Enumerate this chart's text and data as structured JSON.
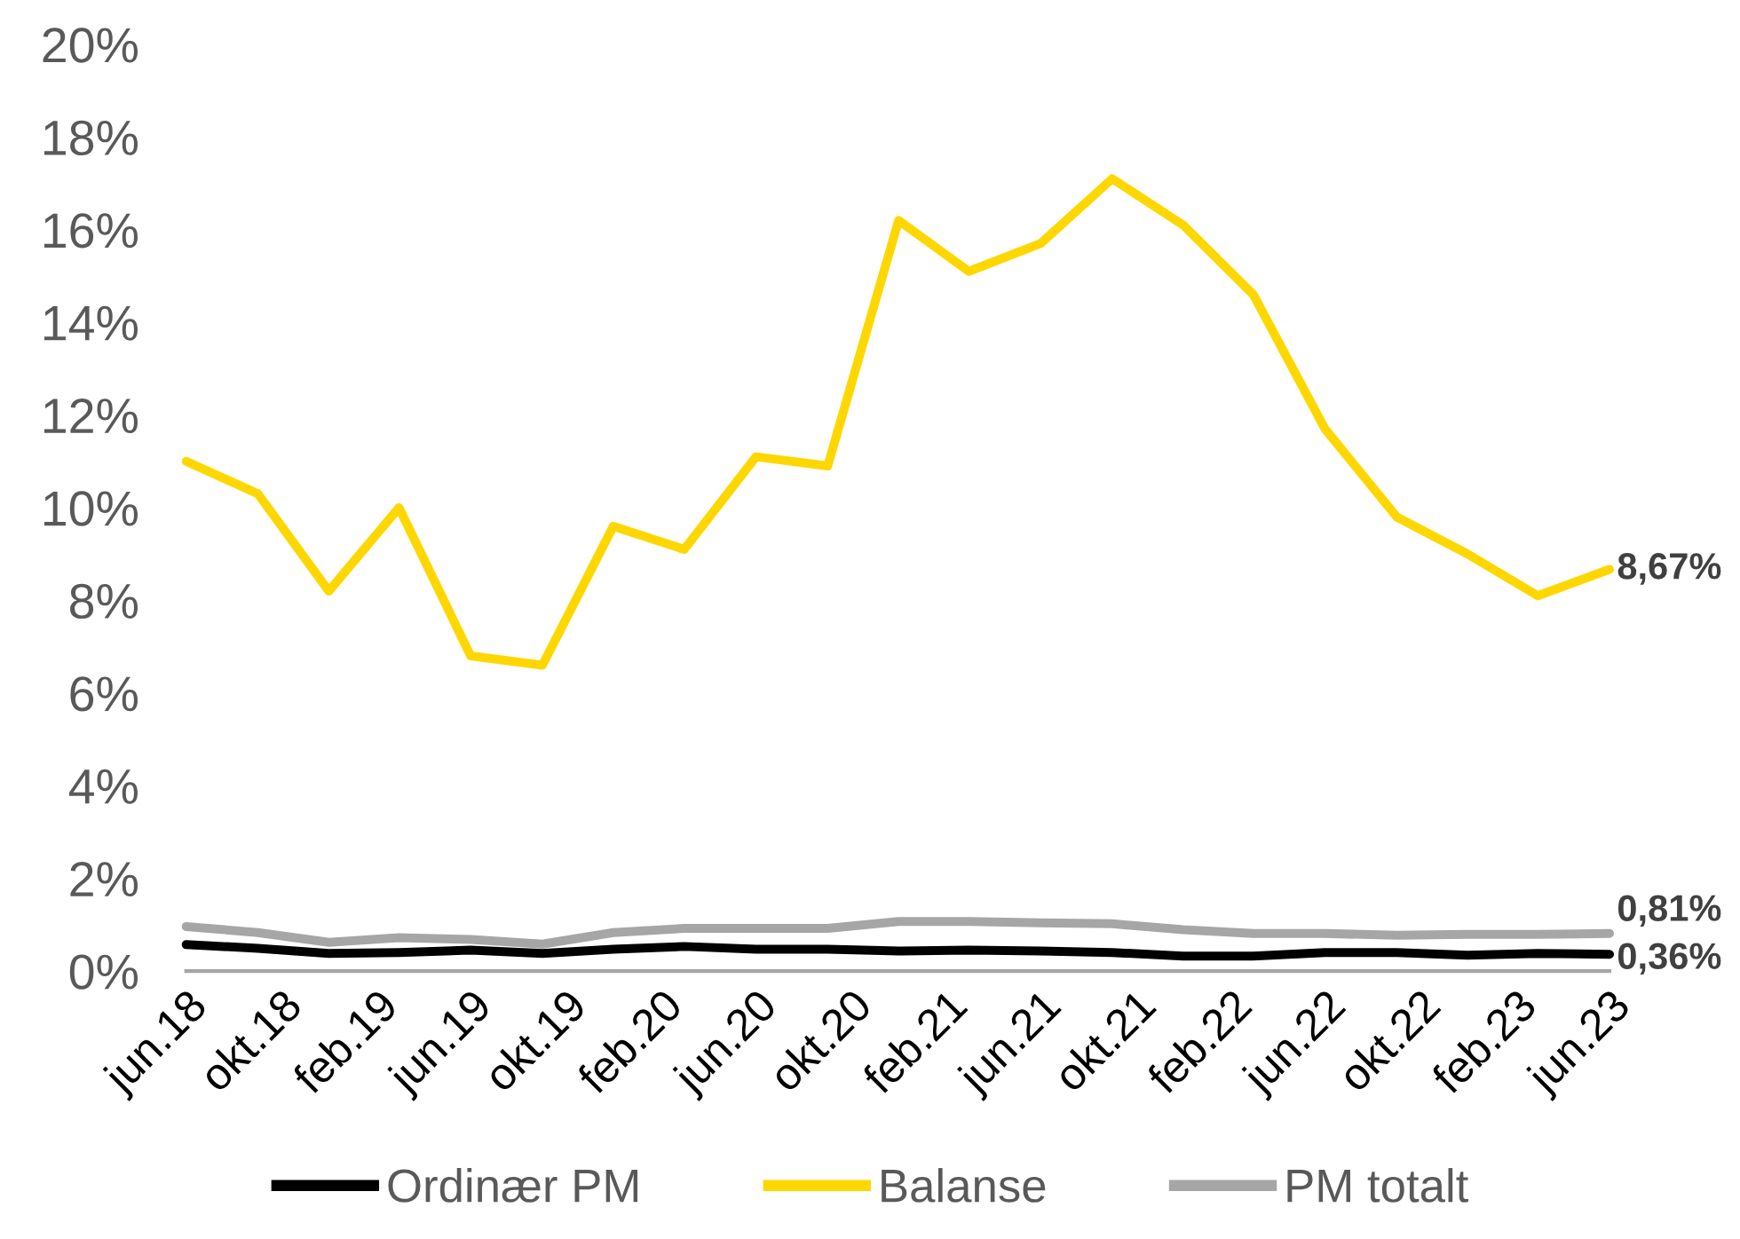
{
  "chart_data": {
    "type": "line",
    "x": [
      "2018-06",
      "2018-09",
      "2018-12",
      "2019-03",
      "2019-06",
      "2019-09",
      "2019-12",
      "2020-03",
      "2020-06",
      "2020-09",
      "2020-12",
      "2021-03",
      "2021-06",
      "2021-09",
      "2021-12",
      "2022-03",
      "2022-06",
      "2022-09",
      "2022-12",
      "2023-03",
      "2023-06"
    ],
    "series": [
      {
        "name": "Ordinær PM",
        "color": "#000000",
        "values": [
          0.57,
          0.49,
          0.38,
          0.4,
          0.45,
          0.38,
          0.47,
          0.53,
          0.47,
          0.47,
          0.43,
          0.45,
          0.43,
          0.4,
          0.32,
          0.32,
          0.4,
          0.4,
          0.34,
          0.38,
          0.36
        ]
      },
      {
        "name": "Balanse",
        "color": "#ffd700",
        "values": [
          11.0,
          10.3,
          8.2,
          10.0,
          6.8,
          6.6,
          9.6,
          9.1,
          11.1,
          10.9,
          16.2,
          15.1,
          15.7,
          17.1,
          16.1,
          14.6,
          11.7,
          9.8,
          9.0,
          8.1,
          8.67
        ]
      },
      {
        "name": "PM totalt",
        "color": "#a6a6a6",
        "values": [
          0.96,
          0.83,
          0.62,
          0.72,
          0.68,
          0.58,
          0.83,
          0.92,
          0.92,
          0.92,
          1.07,
          1.07,
          1.04,
          1.02,
          0.89,
          0.81,
          0.81,
          0.77,
          0.79,
          0.79,
          0.81
        ]
      }
    ],
    "xlim": [
      "2018-06",
      "2023-06"
    ],
    "xticks": [
      {
        "value": "2018-06",
        "label": "jun.18"
      },
      {
        "value": "2018-10",
        "label": "okt.18"
      },
      {
        "value": "2019-02",
        "label": "feb.19"
      },
      {
        "value": "2019-06",
        "label": "jun.19"
      },
      {
        "value": "2019-10",
        "label": "okt.19"
      },
      {
        "value": "2020-02",
        "label": "feb.20"
      },
      {
        "value": "2020-06",
        "label": "jun.20"
      },
      {
        "value": "2020-10",
        "label": "okt.20"
      },
      {
        "value": "2021-02",
        "label": "feb.21"
      },
      {
        "value": "2021-06",
        "label": "jun.21"
      },
      {
        "value": "2021-10",
        "label": "okt.21"
      },
      {
        "value": "2022-02",
        "label": "feb.22"
      },
      {
        "value": "2022-06",
        "label": "jun.22"
      },
      {
        "value": "2022-10",
        "label": "okt.22"
      },
      {
        "value": "2023-02",
        "label": "feb.23"
      },
      {
        "value": "2023-06",
        "label": "jun.23"
      }
    ],
    "ylim": [
      0,
      20
    ],
    "yticks": [
      {
        "value": 0,
        "label": "0%"
      },
      {
        "value": 2,
        "label": "2%"
      },
      {
        "value": 4,
        "label": "4%"
      },
      {
        "value": 6,
        "label": "6%"
      },
      {
        "value": 8,
        "label": "8%"
      },
      {
        "value": 10,
        "label": "10%"
      },
      {
        "value": 12,
        "label": "12%"
      },
      {
        "value": 14,
        "label": "14%"
      },
      {
        "value": 16,
        "label": "16%"
      },
      {
        "value": 18,
        "label": "18%"
      },
      {
        "value": 20,
        "label": "20%"
      }
    ],
    "grid": false,
    "legend": "bottom",
    "annotations": [
      {
        "text": "8,67%",
        "x": "2023-06",
        "y": 8.67
      },
      {
        "text": "0,81%",
        "x": "2023-06",
        "y": 0.81
      },
      {
        "text": "0,36%",
        "x": "2023-06",
        "y": 0.36
      }
    ]
  }
}
